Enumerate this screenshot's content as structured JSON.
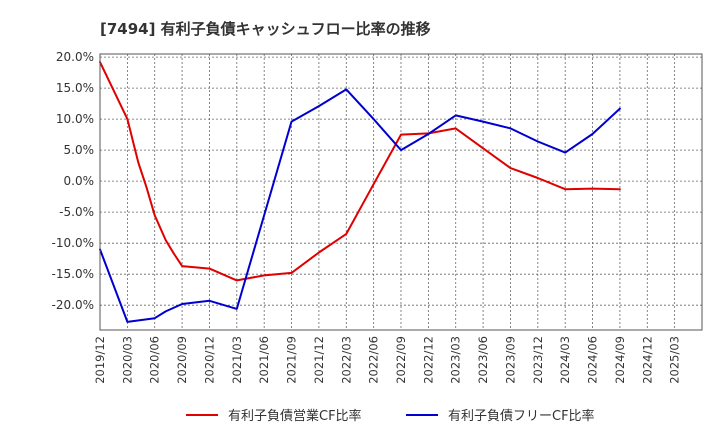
{
  "chart_data": {
    "type": "line",
    "title": "[7494]  有利子負債キャッシュフロー比率の推移",
    "xlabel": "",
    "ylabel": "",
    "ylim": [
      -24.0,
      20.5
    ],
    "y_ticks": [
      20,
      15,
      10,
      5,
      0,
      -5,
      -10,
      -15,
      -20
    ],
    "y_tick_labels": [
      "20.0%",
      "15.0%",
      "10.0%",
      "5.0%",
      "0.0%",
      "-5.0%",
      "-10.0%",
      "-15.0%",
      "-20.0%"
    ],
    "x_tick_labels": [
      "2019/12",
      "2020/03",
      "2020/06",
      "2020/09",
      "2020/12",
      "2021/03",
      "2021/06",
      "2021/09",
      "2021/12",
      "2022/03",
      "2022/06",
      "2022/09",
      "2022/12",
      "2023/03",
      "2023/06",
      "2023/09",
      "2023/12",
      "2024/03",
      "2024/06",
      "2024/09",
      "2024/12",
      "2025/03"
    ],
    "grid": true,
    "legend": "bottom",
    "series": [
      {
        "name": "有利子負債営業CF比率",
        "color": "#e00000",
        "points": [
          [
            0,
            19.2
          ],
          [
            1,
            10.0
          ],
          [
            1.4,
            3.0
          ],
          [
            1.7,
            -1.0
          ],
          [
            2,
            -5.5
          ],
          [
            2.4,
            -9.5
          ],
          [
            2.7,
            -11.7
          ],
          [
            3,
            -13.7
          ],
          [
            4,
            -14.1
          ],
          [
            5,
            -16.0
          ],
          [
            6,
            -15.2
          ],
          [
            7,
            -14.8
          ],
          [
            8,
            -11.5
          ],
          [
            9,
            -8.5
          ],
          [
            10,
            -0.5
          ],
          [
            11,
            7.5
          ],
          [
            12,
            7.7
          ],
          [
            13,
            8.5
          ],
          [
            14,
            5.3
          ],
          [
            15,
            2.1
          ],
          [
            16,
            0.5
          ],
          [
            17,
            -1.3
          ],
          [
            18,
            -1.2
          ],
          [
            19,
            -1.3
          ]
        ]
      },
      {
        "name": "有利子負債フリーCF比率",
        "color": "#0000d0",
        "points": [
          [
            0,
            -11.0
          ],
          [
            1,
            -22.7
          ],
          [
            2,
            -22.1
          ],
          [
            2.4,
            -21.0
          ],
          [
            3,
            -19.8
          ],
          [
            4,
            -19.3
          ],
          [
            5,
            -20.6
          ],
          [
            7,
            9.6
          ],
          [
            8,
            12.1
          ],
          [
            9,
            14.8
          ],
          [
            10,
            10.0
          ],
          [
            11,
            5.0
          ],
          [
            12,
            7.6
          ],
          [
            13,
            10.6
          ],
          [
            14,
            9.6
          ],
          [
            15,
            8.5
          ],
          [
            16,
            6.4
          ],
          [
            17,
            4.6
          ],
          [
            18,
            7.6
          ],
          [
            19,
            11.7
          ]
        ]
      }
    ]
  }
}
